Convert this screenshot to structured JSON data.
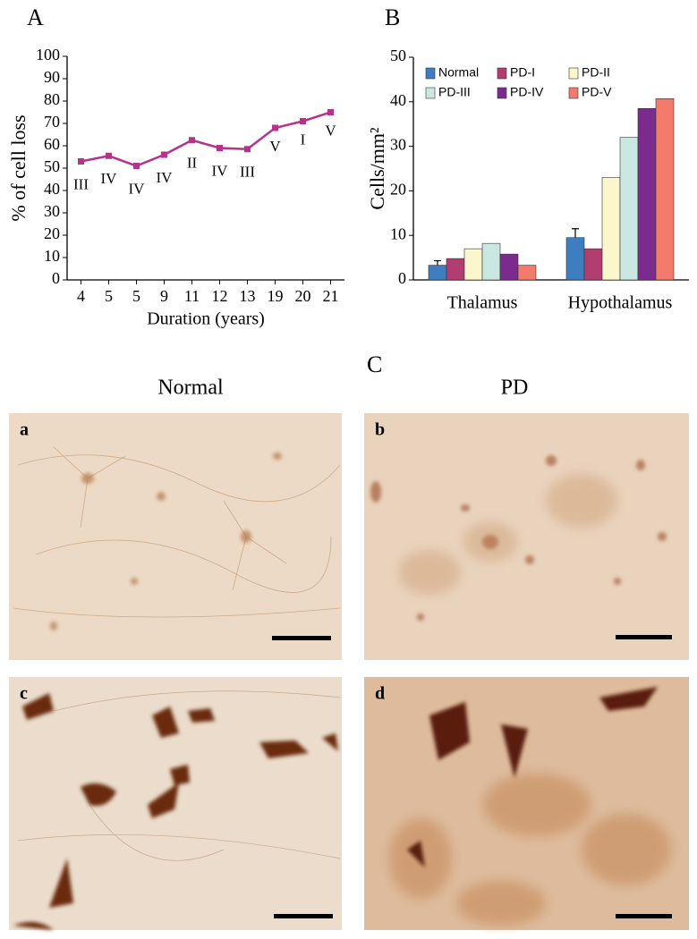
{
  "chart_data": [
    {
      "type": "line",
      "panel": "A",
      "x_label": "Duration (years)",
      "y_label": "% of cell loss",
      "categories": [
        "4",
        "5",
        "5",
        "9",
        "11",
        "12",
        "13",
        "19",
        "20",
        "21"
      ],
      "values": [
        53,
        55.5,
        51,
        56,
        62.5,
        59,
        58.5,
        68,
        71,
        75
      ],
      "point_labels": [
        "III",
        "IV",
        "IV",
        "IV",
        "II",
        "IV",
        "III",
        "V",
        "I",
        "V"
      ],
      "color": "#b5338a",
      "ylim": [
        0,
        100
      ],
      "yticks": [
        0,
        10,
        20,
        30,
        40,
        50,
        60,
        70,
        80,
        90,
        100
      ]
    },
    {
      "type": "bar",
      "panel": "B",
      "y_label": "Cells/mm²",
      "legend": "upper-left",
      "categories": [
        "Thalamus",
        "Hypothalamus"
      ],
      "series": [
        {
          "name": "Normal",
          "color": "#3f7dc1",
          "values": [
            3.3,
            9.5
          ],
          "errors": [
            1.0,
            2.0
          ]
        },
        {
          "name": "PD-I",
          "color": "#b23d70",
          "values": [
            4.8,
            7
          ]
        },
        {
          "name": "PD-II",
          "color": "#fbf6cb",
          "values": [
            7,
            23
          ]
        },
        {
          "name": "PD-III",
          "color": "#cbe7e1",
          "values": [
            8.2,
            32
          ]
        },
        {
          "name": "PD-IV",
          "color": "#7b2b8d",
          "values": [
            5.8,
            38.5
          ]
        },
        {
          "name": "PD-V",
          "color": "#f47b6c",
          "values": [
            3.3,
            40.7
          ]
        }
      ],
      "ylim": [
        0,
        50
      ],
      "yticks": [
        0,
        10,
        20,
        30,
        40,
        50
      ]
    }
  ],
  "panel_c": {
    "label": "C",
    "column_titles": [
      "Normal",
      "PD"
    ],
    "panels": [
      "a",
      "b",
      "c",
      "d"
    ]
  }
}
